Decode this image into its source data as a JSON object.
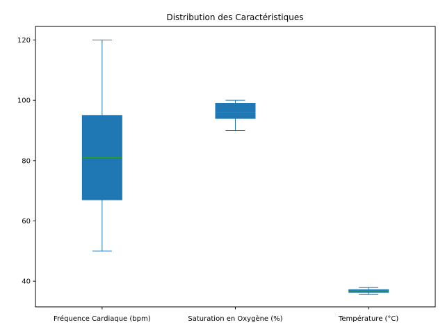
{
  "chart_data": {
    "type": "box",
    "title": "Distribution des Caractéristiques",
    "categories": [
      "Fréquence Cardiaque (bpm)",
      "Saturation en Oxygène (%)",
      "Température (°C)"
    ],
    "ylim": [
      31.5,
      124.5
    ],
    "yticks": [
      40,
      60,
      80,
      100,
      120
    ],
    "grid": false,
    "legend": "none",
    "colors": {
      "box": "#1f77b4",
      "median": "#2ca02c",
      "whisker": "#1f77b4"
    },
    "boxes": [
      {
        "name": "Fréquence Cardiaque (bpm)",
        "whisker_low": 50,
        "q1": 67,
        "median": 81,
        "q3": 95,
        "whisker_high": 120
      },
      {
        "name": "Saturation en Oxygène (%)",
        "whisker_low": 90,
        "q1": 94,
        "median": 96,
        "q3": 99,
        "whisker_high": 100
      },
      {
        "name": "Température (°C)",
        "whisker_low": 35.6,
        "q1": 36.3,
        "median": 36.8,
        "q3": 37.2,
        "whisker_high": 37.9
      }
    ]
  }
}
